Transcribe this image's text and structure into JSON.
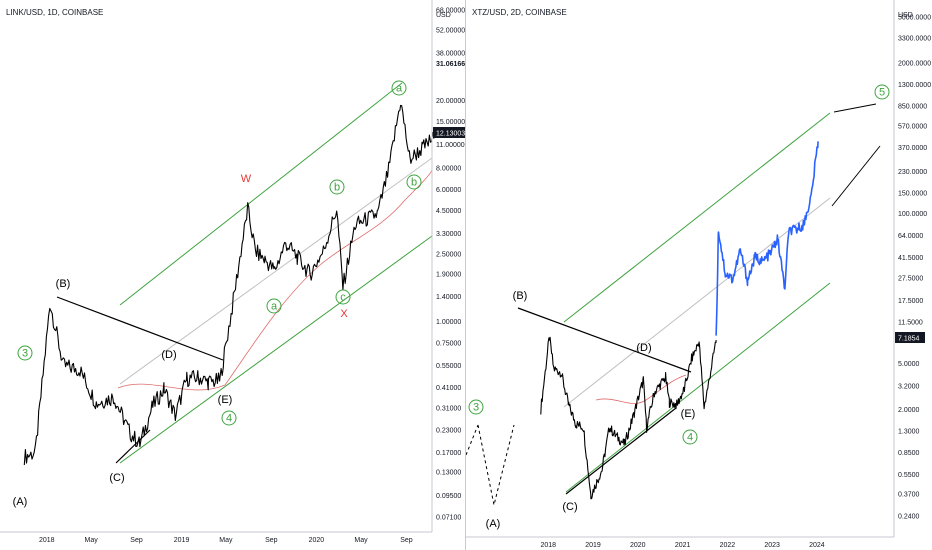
{
  "colors": {
    "price": "#000000",
    "price_xtz_recent": "#2962ff",
    "channel": "#3fa33f",
    "ema": "#e06b6b",
    "midline": "#c0c0c0",
    "wave_green": "#3fa33f",
    "wave_red": "#e53935",
    "badge_bg": "#131722",
    "badge_text": "#ffffff"
  },
  "chart_data": [
    {
      "type": "line",
      "symbol_label": "LINK/USD, 1D, COINBASE",
      "price_scale": "log",
      "y_unit": "USD",
      "y_ticks": [
        "68.00000",
        "52.00000",
        "38.00000",
        "20.00000",
        "15.00000",
        "11.00000",
        "8.00000",
        "6.00000",
        "4.50000",
        "3.30000",
        "2.50000",
        "1.90000",
        "1.40000",
        "1.00000",
        "0.75000",
        "0.55000",
        "0.41000",
        "0.31000",
        "0.23000",
        "0.17000",
        "0.13000",
        "0.09500",
        "0.07100"
      ],
      "x_ticks": [
        "2018",
        "May",
        "Sep",
        "2019",
        "May",
        "Sep",
        "2020",
        "May",
        "Sep"
      ],
      "last_price_badge": "12.13003",
      "extra_price_label": "31.06166",
      "series": [
        {
          "values": [
            [
              "2017-11-01",
              0.16
            ],
            [
              "2017-12-01",
              0.17
            ],
            [
              "2018-01-10",
              1.28
            ],
            [
              "2018-02-15",
              0.55
            ],
            [
              "2018-04-01",
              0.52
            ],
            [
              "2018-05-15",
              0.33
            ],
            [
              "2018-07-01",
              0.36
            ],
            [
              "2018-08-15",
              0.22
            ],
            [
              "2018-09-10",
              0.19
            ],
            [
              "2018-10-15",
              0.32
            ],
            [
              "2018-11-15",
              0.4
            ],
            [
              "2018-12-15",
              0.28
            ],
            [
              "2019-01-15",
              0.46
            ],
            [
              "2019-02-15",
              0.47
            ],
            [
              "2019-03-15",
              0.44
            ],
            [
              "2019-04-15",
              0.45
            ],
            [
              "2019-05-15",
              1.1
            ],
            [
              "2019-06-29",
              4.6
            ],
            [
              "2019-07-20",
              2.6
            ],
            [
              "2019-08-15",
              2.3
            ],
            [
              "2019-09-10",
              2.0
            ],
            [
              "2019-10-10",
              2.9
            ],
            [
              "2019-11-10",
              2.4
            ],
            [
              "2019-12-15",
              1.9
            ],
            [
              "2020-01-20",
              2.6
            ],
            [
              "2020-02-25",
              4.6
            ],
            [
              "2020-03-13",
              1.6
            ],
            [
              "2020-04-15",
              3.7
            ],
            [
              "2020-06-15",
              4.3
            ],
            [
              "2020-07-15",
              7.8
            ],
            [
              "2020-08-16",
              19.8
            ],
            [
              "2020-09-10",
              9.0
            ],
            [
              "2020-10-15",
              10.5
            ],
            [
              "2020-11-15",
              12.13
            ]
          ]
        }
      ],
      "wave_labels_black": [
        "(B)",
        "(D)",
        "(E)",
        "(C)",
        "(A)"
      ],
      "wave_labels_green": [
        "3",
        "4",
        "a",
        "b",
        "c",
        "a",
        "b"
      ],
      "wave_labels_red": [
        "W",
        "X"
      ]
    },
    {
      "type": "line",
      "symbol_label": "XTZ/USD, 2D, COINBASE",
      "price_scale": "log",
      "y_unit": "USD",
      "y_ticks": [
        "5000.0000",
        "3300.0000",
        "2000.0000",
        "1300.0000",
        "850.0000",
        "570.0000",
        "370.0000",
        "230.0000",
        "150.0000",
        "100.0000",
        "64.0000",
        "41.5000",
        "27.5000",
        "17.5000",
        "11.5000",
        "5.0000",
        "3.2000",
        "2.0000",
        "1.3000",
        "0.8500",
        "0.5500",
        "0.3700",
        "0.2400"
      ],
      "x_ticks": [
        "2018",
        "2019",
        "2020",
        "2021",
        "2022",
        "2023",
        "2024"
      ],
      "last_price_badge": "7.1854",
      "series": [
        {
          "values": [
            [
              "2017-11-01",
              2.0
            ],
            [
              "2018-01-10",
              8.5
            ],
            [
              "2018-02-15",
              4.5
            ],
            [
              "2018-04-15",
              4.2
            ],
            [
              "2018-06-15",
              2.2
            ],
            [
              "2018-08-15",
              1.5
            ],
            [
              "2018-10-15",
              1.4
            ],
            [
              "2018-12-15",
              0.36
            ],
            [
              "2019-03-15",
              0.6
            ],
            [
              "2019-05-15",
              1.4
            ],
            [
              "2019-07-01",
              1.2
            ],
            [
              "2019-09-15",
              1.0
            ],
            [
              "2019-11-15",
              1.6
            ],
            [
              "2020-02-15",
              3.6
            ],
            [
              "2020-03-13",
              1.4
            ],
            [
              "2020-05-15",
              2.8
            ],
            [
              "2020-08-15",
              3.8
            ],
            [
              "2020-09-15",
              2.3
            ],
            [
              "2020-11-15",
              2.2
            ],
            [
              "2021-01-15",
              3.0
            ],
            [
              "2021-03-15",
              5.5
            ],
            [
              "2021-05-15",
              7.7
            ],
            [
              "2021-06-25",
              2.1
            ],
            [
              "2021-08-01",
              3.4
            ],
            [
              "2021-10-01",
              8.0
            ]
          ]
        },
        {
          "values": [
            [
              "2021-10-01",
              8.0
            ],
            [
              "2021-10-20",
              72.0
            ],
            [
              "2021-12-15",
              30.0
            ],
            [
              "2022-02-15",
              27.0
            ],
            [
              "2022-04-15",
              48.0
            ],
            [
              "2022-06-15",
              26.0
            ],
            [
              "2022-08-15",
              42.0
            ],
            [
              "2022-10-15",
              38.0
            ],
            [
              "2022-12-15",
              45.0
            ],
            [
              "2023-02-15",
              60.0
            ],
            [
              "2023-04-15",
              22.0
            ],
            [
              "2023-05-15",
              70.0
            ],
            [
              "2023-07-15",
              72.0
            ],
            [
              "2023-09-15",
              80.0
            ],
            [
              "2023-11-15",
              140.0
            ],
            [
              "2024-01-10",
              420.0
            ]
          ]
        }
      ],
      "wave_labels_black": [
        "(B)",
        "(D)",
        "(E)",
        "(C)",
        "(A)"
      ],
      "wave_labels_green": [
        "3",
        "4",
        "5"
      ]
    }
  ]
}
